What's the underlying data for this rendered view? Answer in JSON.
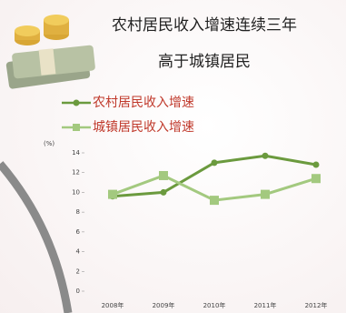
{
  "chart_data": {
    "type": "line",
    "title": "农村居民收入增速连续三年",
    "subtitle": "高于城镇居民",
    "y_label": "(%)",
    "categories": [
      "2008年",
      "2009年",
      "2010年",
      "2011年",
      "2012年"
    ],
    "series": [
      {
        "name": "农村居民收入增速",
        "color": "#6b9a3e",
        "marker": "circle",
        "values": [
          9.6,
          10.0,
          13.0,
          13.7,
          12.8
        ]
      },
      {
        "name": "城镇居民收入增速",
        "color": "#a3c97f",
        "marker": "square",
        "values": [
          9.8,
          11.7,
          9.2,
          9.8,
          11.4
        ]
      }
    ],
    "ylim": [
      0,
      14
    ],
    "yticks": [
      0,
      2,
      4,
      6,
      8,
      10,
      12,
      14
    ],
    "grid": false
  }
}
